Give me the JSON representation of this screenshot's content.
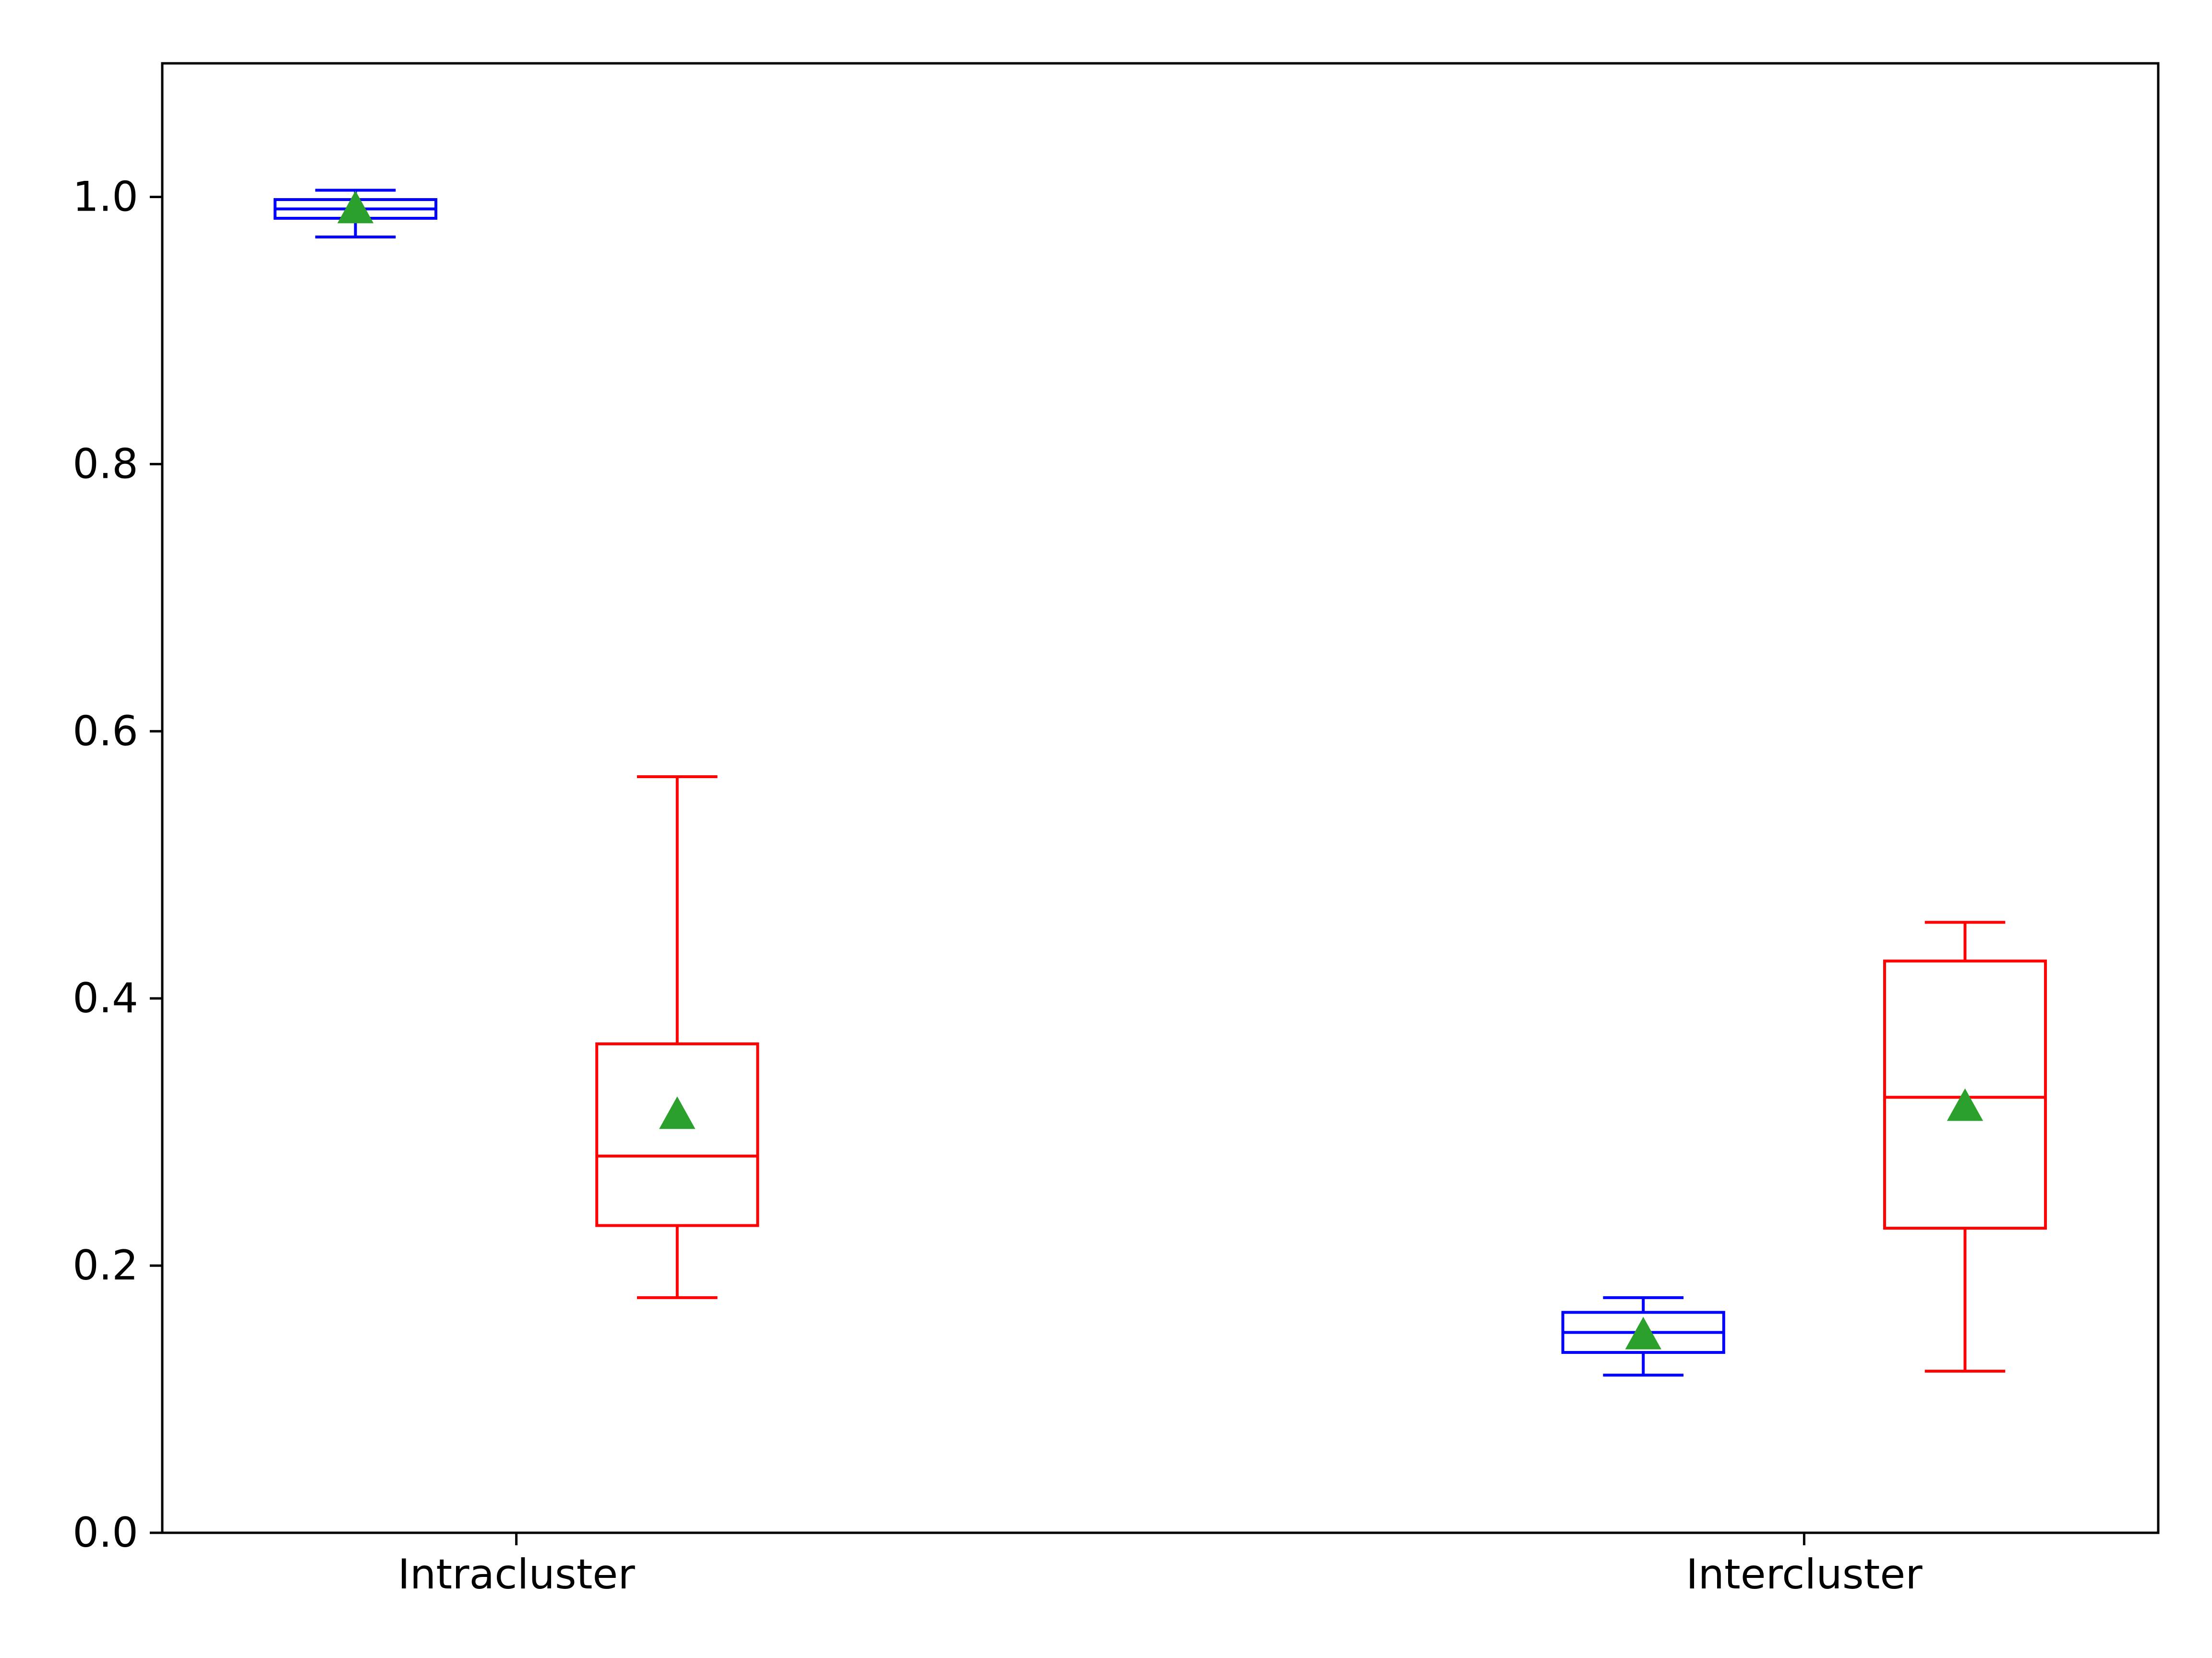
{
  "chart_data": {
    "type": "box",
    "title": "",
    "xlabel": "",
    "ylabel": "",
    "ylim": [
      0,
      1.1
    ],
    "y_ticks": [
      {
        "value": 0.0,
        "label": "0.0"
      },
      {
        "value": 0.2,
        "label": "0.2"
      },
      {
        "value": 0.4,
        "label": "0.4"
      },
      {
        "value": 0.6,
        "label": "0.6"
      },
      {
        "value": 0.8,
        "label": "0.8"
      },
      {
        "value": 1.0,
        "label": "1.0"
      }
    ],
    "categories": [
      "Intracluster",
      "Intercluster"
    ],
    "grid": false,
    "legend": "none",
    "series": [
      {
        "color": "#0000ff",
        "boxes": [
          {
            "whisker_low": 0.97,
            "q1": 0.984,
            "median": 0.991,
            "q3": 0.998,
            "whisker_high": 1.005,
            "mean": 0.991
          },
          {
            "whisker_low": 0.118,
            "q1": 0.135,
            "median": 0.15,
            "q3": 0.165,
            "whisker_high": 0.176,
            "mean": 0.148
          }
        ]
      },
      {
        "color": "#ff0000",
        "boxes": [
          {
            "whisker_low": 0.176,
            "q1": 0.23,
            "median": 0.282,
            "q3": 0.366,
            "whisker_high": 0.566,
            "mean": 0.313
          },
          {
            "whisker_low": 0.121,
            "q1": 0.228,
            "median": 0.326,
            "q3": 0.428,
            "whisker_high": 0.457,
            "mean": 0.319
          }
        ]
      }
    ],
    "mean_marker_color": "#2ca02c"
  }
}
